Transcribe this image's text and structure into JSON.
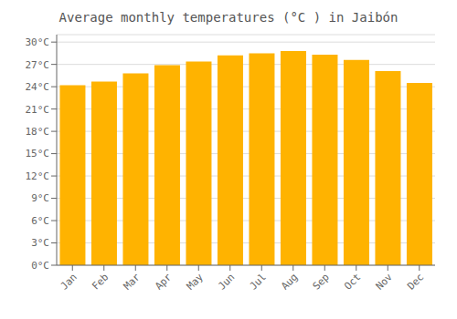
{
  "chart_data": {
    "type": "bar",
    "title": "Average monthly temperatures (°C ) in Jaibón",
    "categories": [
      "Jan",
      "Feb",
      "Mar",
      "Apr",
      "May",
      "Jun",
      "Jul",
      "Aug",
      "Sep",
      "Oct",
      "Nov",
      "Dec"
    ],
    "values": [
      24.2,
      24.7,
      25.8,
      26.9,
      27.4,
      28.2,
      28.5,
      28.8,
      28.3,
      27.6,
      26.1,
      24.5
    ],
    "color": "#FFB300",
    "ylim": [
      0,
      31
    ],
    "yticks": [
      {
        "value": 0,
        "label": "0°C"
      },
      {
        "value": 3,
        "label": "3°C"
      },
      {
        "value": 6,
        "label": "6°C"
      },
      {
        "value": 9,
        "label": "9°C"
      },
      {
        "value": 12,
        "label": "12°C"
      },
      {
        "value": 15,
        "label": "15°C"
      },
      {
        "value": 18,
        "label": "18°C"
      },
      {
        "value": 21,
        "label": "21°C"
      },
      {
        "value": 24,
        "label": "24°C"
      },
      {
        "value": 27,
        "label": "27°C"
      },
      {
        "value": 30,
        "label": "30°C"
      }
    ],
    "grid": true
  }
}
